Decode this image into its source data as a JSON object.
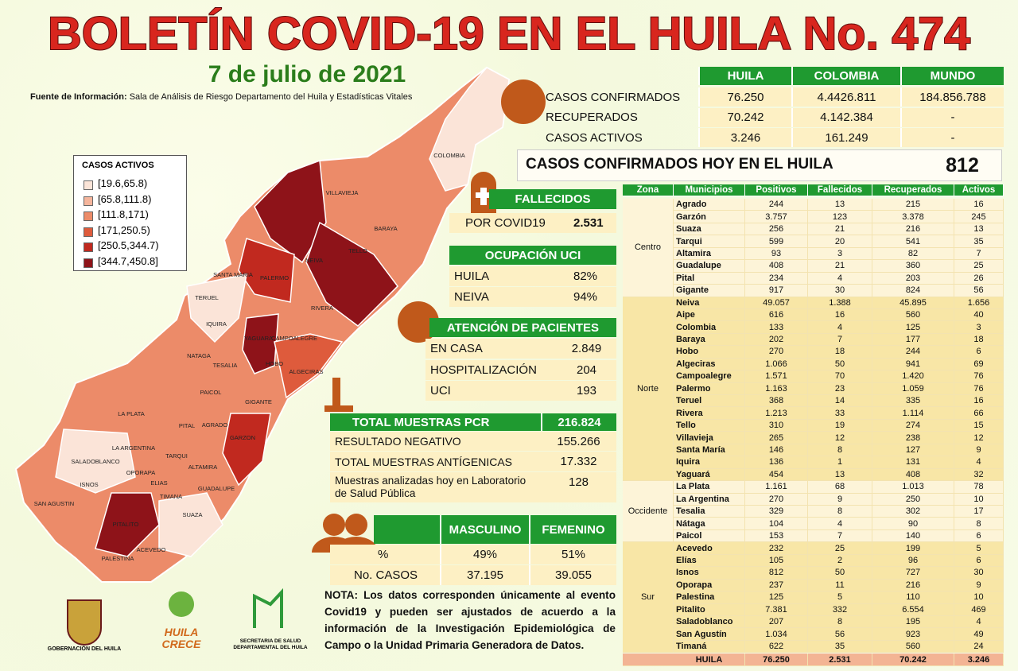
{
  "header": {
    "title": "BOLETÍN COVID-19 EN EL HUILA No. 474",
    "date": "7 de julio de 2021",
    "source_label": "Fuente de Información:",
    "source_text": "Sala de Análisis de Riesgo Departamento del Huila y Estadísticas Vitales"
  },
  "legend": {
    "title": "CASOS ACTIVOS",
    "items": [
      {
        "label": "[19.6,65.8)",
        "color": "#fbe4d8"
      },
      {
        "label": "[65.8,111.8)",
        "color": "#f5b59c"
      },
      {
        "label": "[111.8,171)",
        "color": "#ec8b69"
      },
      {
        "label": "[171,250.5)",
        "color": "#de5b3c"
      },
      {
        "label": "[250.5,344.7)",
        "color": "#c1291f"
      },
      {
        "label": "[344.7,450.8]",
        "color": "#8e1319"
      }
    ]
  },
  "map_labels": [
    "COLOMBIA",
    "VILLAVIEJA",
    "BARAYA",
    "TELLO",
    "NEIVA",
    "SANTA MARIA",
    "PALERMO",
    "TERUEL",
    "RIVERA",
    "IQUIRA",
    "YAGUARA",
    "CAMPOALEGRE",
    "NATAGA",
    "TESALIA",
    "HOBO",
    "ALGECIRAS",
    "PAICOL",
    "GIGANTE",
    "LA PLATA",
    "PITAL",
    "AGRADO",
    "LA ARGENTINA",
    "TARQUI",
    "GARZON",
    "SALADOBLANCO",
    "OPORAPA",
    "ELIAS",
    "ALTAMIRA",
    "ISNOS",
    "TIMANA",
    "GUADALUPE",
    "SAN AGUSTIN",
    "SUAZA",
    "PITALITO",
    "ACEVEDO",
    "PALESTINA"
  ],
  "summary": {
    "columns": [
      "HUILA",
      "COLOMBIA",
      "MUNDO"
    ],
    "rows": [
      [
        "CASOS CONFIRMADOS",
        "76.250",
        "4.4426.811",
        "184.856.788"
      ],
      [
        "RECUPERADOS",
        "70.242",
        "4.142.384",
        "-"
      ],
      [
        "CASOS ACTIVOS",
        "3.246",
        "161.249",
        "-"
      ]
    ]
  },
  "today": {
    "label": "CASOS CONFIRMADOS HOY EN EL HUILA",
    "value": "812"
  },
  "deaths": {
    "title": "FALLECIDOS",
    "label": "POR COVID19",
    "value": "2.531"
  },
  "icu": {
    "title": "OCUPACIÓN UCI",
    "rows": [
      [
        "HUILA",
        "82%"
      ],
      [
        "NEIVA",
        "94%"
      ]
    ]
  },
  "care": {
    "title": "ATENCIÓN DE PACIENTES",
    "rows": [
      [
        "EN CASA",
        "2.849"
      ],
      [
        "HOSPITALIZACIÓN",
        "204"
      ],
      [
        "UCI",
        "193"
      ]
    ]
  },
  "pcr": {
    "title": "TOTAL MUESTRAS PCR",
    "value": "216.824",
    "rows": [
      [
        "RESULTADO NEGATIVO",
        "155.266"
      ],
      [
        "TOTAL MUESTRAS ANTÍGENICAS",
        "17.332"
      ],
      [
        "Muestras analizadas hoy en Laboratorio de Salud Pública",
        "128"
      ]
    ]
  },
  "gender": {
    "columns": [
      "MASCULINO",
      "FEMENINO"
    ],
    "rows": [
      [
        "%",
        "49%",
        "51%"
      ],
      [
        "No. CASOS",
        "37.195",
        "39.055"
      ]
    ]
  },
  "note": "NOTA: Los datos corresponden únicamente al evento Covid19 y pueden ser ajustados de acuerdo a la información de la Investigación Epidemiológica de Campo o la Unidad Primaria Generadora de Datos.",
  "logos": {
    "gobernacion": "GOBERNACIÓN DEL HUILA",
    "crece": [
      "HUILA",
      "CRECE"
    ],
    "secretaria": [
      "SECRETARIA DE SALUD",
      "DEPARTAMENTAL DEL HUILA"
    ]
  },
  "table": {
    "columns": [
      "Zona",
      "Municipios",
      "Positivos",
      "Fallecidos",
      "Recuperados",
      "Activos"
    ],
    "zones": [
      {
        "name": "Centro",
        "rows": [
          [
            "Agrado",
            "244",
            "13",
            "215",
            "16"
          ],
          [
            "Garzón",
            "3.757",
            "123",
            "3.378",
            "245"
          ],
          [
            "Suaza",
            "256",
            "21",
            "216",
            "13"
          ],
          [
            "Tarqui",
            "599",
            "20",
            "541",
            "35"
          ],
          [
            "Altamira",
            "93",
            "3",
            "82",
            "7"
          ],
          [
            "Guadalupe",
            "408",
            "21",
            "360",
            "25"
          ],
          [
            "Pital",
            "234",
            "4",
            "203",
            "26"
          ],
          [
            "Gigante",
            "917",
            "30",
            "824",
            "56"
          ]
        ]
      },
      {
        "name": "Norte",
        "rows": [
          [
            "Neiva",
            "49.057",
            "1.388",
            "45.895",
            "1.656"
          ],
          [
            "Aipe",
            "616",
            "16",
            "560",
            "40"
          ],
          [
            "Colombia",
            "133",
            "4",
            "125",
            "3"
          ],
          [
            "Baraya",
            "202",
            "7",
            "177",
            "18"
          ],
          [
            "Hobo",
            "270",
            "18",
            "244",
            "6"
          ],
          [
            "Algeciras",
            "1.066",
            "50",
            "941",
            "69"
          ],
          [
            "Campoalegre",
            "1.571",
            "70",
            "1.420",
            "76"
          ],
          [
            "Palermo",
            "1.163",
            "23",
            "1.059",
            "76"
          ],
          [
            "Teruel",
            "368",
            "14",
            "335",
            "16"
          ],
          [
            "Rivera",
            "1.213",
            "33",
            "1.114",
            "66"
          ],
          [
            "Tello",
            "310",
            "19",
            "274",
            "15"
          ],
          [
            "Villavieja",
            "265",
            "12",
            "238",
            "12"
          ],
          [
            "Santa María",
            "146",
            "8",
            "127",
            "9"
          ],
          [
            "Iquira",
            "136",
            "1",
            "131",
            "4"
          ],
          [
            "Yaguará",
            "454",
            "13",
            "408",
            "32"
          ]
        ]
      },
      {
        "name": "Occidente",
        "rows": [
          [
            "La Plata",
            "1.161",
            "68",
            "1.013",
            "78"
          ],
          [
            "La Argentina",
            "270",
            "9",
            "250",
            "10"
          ],
          [
            "Tesalia",
            "329",
            "8",
            "302",
            "17"
          ],
          [
            "Nátaga",
            "104",
            "4",
            "90",
            "8"
          ],
          [
            "Paicol",
            "153",
            "7",
            "140",
            "6"
          ]
        ]
      },
      {
        "name": "Sur",
        "rows": [
          [
            "Acevedo",
            "232",
            "25",
            "199",
            "5"
          ],
          [
            "Elías",
            "105",
            "2",
            "96",
            "6"
          ],
          [
            "Isnos",
            "812",
            "50",
            "727",
            "30"
          ],
          [
            "Oporapa",
            "237",
            "11",
            "216",
            "9"
          ],
          [
            "Palestina",
            "125",
            "5",
            "110",
            "10"
          ],
          [
            "Pitalito",
            "7.381",
            "332",
            "6.554",
            "469"
          ],
          [
            "Saladoblanco",
            "207",
            "8",
            "195",
            "4"
          ],
          [
            "San Agustín",
            "1.034",
            "56",
            "923",
            "49"
          ],
          [
            "Timaná",
            "622",
            "35",
            "560",
            "24"
          ]
        ]
      }
    ],
    "total": [
      "HUILA",
      "76.250",
      "2.531",
      "70.242",
      "3.246"
    ]
  }
}
